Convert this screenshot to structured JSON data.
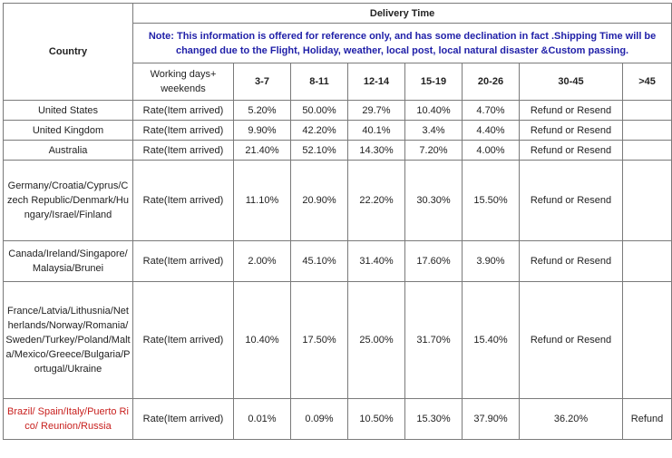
{
  "header": {
    "country": "Country",
    "delivery_time": "Delivery Time",
    "note": "Note: This information is offered for reference only, and has some declination in fact .Shipping Time will be changed due to the Flight, Holiday, weather, local post, local natural disaster &Custom passing.",
    "working_days": "Working days+ weekends",
    "ranges": [
      "3-7",
      "8-11",
      "12-14",
      "15-19",
      "20-26",
      "30-45",
      ">45"
    ]
  },
  "rows": [
    {
      "country": "United States",
      "rate_label": "Rate(Item arrived)",
      "v1": "5.20%",
      "v2": "50.00%",
      "v3": "29.7%",
      "v4": "10.40%",
      "v5": "4.70%",
      "v6": "Refund or Resend",
      "v7": ""
    },
    {
      "country": "United Kingdom",
      "rate_label": "Rate(Item arrived)",
      "v1": "9.90%",
      "v2": "42.20%",
      "v3": "40.1%",
      "v4": "3.4%",
      "v5": "4.40%",
      "v6": "Refund or Resend",
      "v7": ""
    },
    {
      "country": "Australia",
      "rate_label": "Rate(Item arrived)",
      "v1": "21.40%",
      "v2": "52.10%",
      "v3": "14.30%",
      "v4": "7.20%",
      "v5": "4.00%",
      "v6": "Refund or Resend",
      "v7": ""
    },
    {
      "country": "Germany/Croatia/Cyprus/Czech Republic/Denmark/Hungary/Israel/Finland",
      "rate_label": "Rate(Item arrived)",
      "v1": "11.10%",
      "v2": "20.90%",
      "v3": "22.20%",
      "v4": "30.30%",
      "v5": "15.50%",
      "v6": "Refund or Resend",
      "v7": ""
    },
    {
      "country": "Canada/Ireland/Singapore/Malaysia/Brunei",
      "rate_label": "Rate(Item arrived)",
      "v1": "2.00%",
      "v2": "45.10%",
      "v3": "31.40%",
      "v4": "17.60%",
      "v5": "3.90%",
      "v6": "Refund or Resend",
      "v7": ""
    },
    {
      "country": "France/Latvia/Lithusnia/Netherlands/Norway/Romania/Sweden/Turkey/Poland/Malta/Mexico/Greece/Bulgaria/Portugal/Ukraine",
      "rate_label": "Rate(Item arrived)",
      "v1": "10.40%",
      "v2": "17.50%",
      "v3": "25.00%",
      "v4": "31.70%",
      "v5": "15.40%",
      "v6": "Refund or Resend",
      "v7": ""
    },
    {
      "country": "Brazil/ Spain/Italy/Puerto Rico/ Reunion/Russia",
      "rate_label": "Rate(Item arrived)",
      "v1": "0.01%",
      "v2": "0.09%",
      "v3": "10.50%",
      "v4": "15.30%",
      "v5": "37.90%",
      "v6": "36.20%",
      "v7": "Refund"
    }
  ],
  "colors": {
    "note_text": "#1f1fa8",
    "highlight_country": "#c8201e",
    "border": "#7a7a7a"
  }
}
